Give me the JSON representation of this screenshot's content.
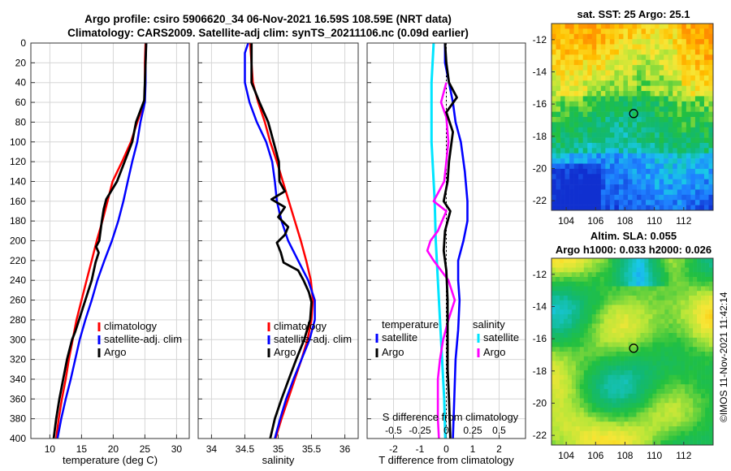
{
  "header": {
    "title_line1": "Argo profile: csiro 5906620_34 06-Nov-2021 16.59S 108.59E (NRT data)",
    "title_line2": "Climatology: CARS2009. Satellite-adj clim: synTS_20211106.nc (0.09d earlier)"
  },
  "right": {
    "sst_title": "sat. SST: 25 Argo: 25.1",
    "sla_title1": "Altim. SLA: 0.055",
    "sla_title2": "Argo h1000: 0.033 h2000: 0.026",
    "copyright": "©IMOS 11-Nov-2021 11:42:14"
  },
  "colors": {
    "climatology": "#ff0000",
    "satellite_adj": "#0000ff",
    "argo": "#000000",
    "sal_satellite": "#00e5ff",
    "sal_argo": "#ff00ff"
  },
  "chart_data": [
    {
      "type": "line",
      "xlabel": "temperature (deg C)",
      "ylabel": "depth",
      "xlim": [
        7,
        32
      ],
      "ylim": [
        400,
        0
      ],
      "xticks": [
        "10",
        "15",
        "20",
        "25",
        "30"
      ],
      "yticks": [
        "0",
        "20",
        "40",
        "60",
        "80",
        "100",
        "120",
        "140",
        "160",
        "180",
        "200",
        "220",
        "240",
        "260",
        "280",
        "300",
        "320",
        "340",
        "360",
        "380",
        "400"
      ],
      "legend": [
        "climatology",
        "satellite-adj. clim",
        "Argo"
      ],
      "series": [
        {
          "name": "climatology",
          "points": [
            [
              25.1,
              0
            ],
            [
              25.0,
              20
            ],
            [
              25.0,
              40
            ],
            [
              24.9,
              60
            ],
            [
              23.8,
              80
            ],
            [
              22.8,
              100
            ],
            [
              21.4,
              120
            ],
            [
              19.9,
              140
            ],
            [
              19.1,
              160
            ],
            [
              18.3,
              180
            ],
            [
              17.4,
              200
            ],
            [
              16.6,
              220
            ],
            [
              15.8,
              240
            ],
            [
              15.0,
              260
            ],
            [
              14.2,
              280
            ],
            [
              13.6,
              300
            ],
            [
              13.0,
              320
            ],
            [
              12.5,
              340
            ],
            [
              11.9,
              360
            ],
            [
              11.4,
              380
            ],
            [
              11.0,
              400
            ]
          ]
        },
        {
          "name": "satellite-adj. clim",
          "points": [
            [
              25.2,
              0
            ],
            [
              25.1,
              20
            ],
            [
              25.1,
              40
            ],
            [
              25.0,
              60
            ],
            [
              24.3,
              80
            ],
            [
              23.8,
              100
            ],
            [
              23.0,
              120
            ],
            [
              22.3,
              140
            ],
            [
              21.6,
              160
            ],
            [
              20.8,
              180
            ],
            [
              19.8,
              200
            ],
            [
              18.6,
              220
            ],
            [
              17.5,
              240
            ],
            [
              16.6,
              260
            ],
            [
              15.6,
              280
            ],
            [
              14.7,
              300
            ],
            [
              14.0,
              320
            ],
            [
              13.3,
              340
            ],
            [
              12.5,
              360
            ],
            [
              11.8,
              380
            ],
            [
              11.2,
              400
            ]
          ]
        },
        {
          "name": "Argo",
          "points": [
            [
              25.2,
              0
            ],
            [
              25.1,
              20
            ],
            [
              25.0,
              40
            ],
            [
              24.9,
              58
            ],
            [
              23.6,
              80
            ],
            [
              23.0,
              100
            ],
            [
              21.8,
              120
            ],
            [
              20.6,
              140
            ],
            [
              18.9,
              158
            ],
            [
              18.5,
              168
            ],
            [
              18.2,
              180
            ],
            [
              17.8,
              200
            ],
            [
              17.3,
              206
            ],
            [
              17.7,
              212
            ],
            [
              17.2,
              222
            ],
            [
              16.6,
              240
            ],
            [
              15.5,
              262
            ],
            [
              14.6,
              280
            ],
            [
              14.0,
              292
            ],
            [
              13.5,
              300
            ],
            [
              12.7,
              320
            ],
            [
              12.1,
              340
            ],
            [
              11.5,
              360
            ],
            [
              11.0,
              380
            ],
            [
              10.6,
              400
            ]
          ]
        }
      ]
    },
    {
      "type": "line",
      "xlabel": "salinity",
      "xlim": [
        33.8,
        36.2
      ],
      "ylim": [
        400,
        0
      ],
      "xticks": [
        "34",
        "34.5",
        "35",
        "35.5",
        "36"
      ],
      "legend": [
        "climatology",
        "satellite-adj. clim",
        "Argo"
      ],
      "series": [
        {
          "name": "climatology",
          "points": [
            [
              34.58,
              0
            ],
            [
              34.62,
              40
            ],
            [
              34.7,
              60
            ],
            [
              34.8,
              80
            ],
            [
              34.88,
              100
            ],
            [
              34.98,
              120
            ],
            [
              35.07,
              140
            ],
            [
              35.16,
              160
            ],
            [
              35.25,
              180
            ],
            [
              35.34,
              200
            ],
            [
              35.42,
              220
            ],
            [
              35.49,
              240
            ],
            [
              35.52,
              260
            ],
            [
              35.5,
              280
            ],
            [
              35.44,
              300
            ],
            [
              35.35,
              320
            ],
            [
              35.25,
              340
            ],
            [
              35.15,
              360
            ],
            [
              35.05,
              380
            ],
            [
              34.96,
              400
            ]
          ]
        },
        {
          "name": "satellite-adj. clim",
          "points": [
            [
              34.55,
              0
            ],
            [
              34.5,
              10
            ],
            [
              34.5,
              40
            ],
            [
              34.57,
              60
            ],
            [
              34.68,
              80
            ],
            [
              34.82,
              100
            ],
            [
              34.91,
              120
            ],
            [
              34.95,
              140
            ],
            [
              34.98,
              160
            ],
            [
              35.05,
              180
            ],
            [
              35.15,
              200
            ],
            [
              35.3,
              220
            ],
            [
              35.45,
              240
            ],
            [
              35.55,
              260
            ],
            [
              35.55,
              280
            ],
            [
              35.47,
              300
            ],
            [
              35.35,
              320
            ],
            [
              35.23,
              340
            ],
            [
              35.12,
              360
            ],
            [
              35.03,
              380
            ],
            [
              34.95,
              400
            ]
          ]
        },
        {
          "name": "Argo",
          "points": [
            [
              34.6,
              0
            ],
            [
              34.6,
              40
            ],
            [
              34.72,
              60
            ],
            [
              34.85,
              80
            ],
            [
              34.93,
              100
            ],
            [
              35.01,
              120
            ],
            [
              35.02,
              140
            ],
            [
              35.1,
              150
            ],
            [
              34.9,
              158
            ],
            [
              35.1,
              166
            ],
            [
              35.0,
              176
            ],
            [
              35.15,
              186
            ],
            [
              35.1,
              194
            ],
            [
              34.98,
              202
            ],
            [
              35.04,
              212
            ],
            [
              35.08,
              222
            ],
            [
              35.3,
              230
            ],
            [
              35.38,
              240
            ],
            [
              35.46,
              252
            ],
            [
              35.5,
              262
            ],
            [
              35.48,
              280
            ],
            [
              35.39,
              300
            ],
            [
              35.27,
              320
            ],
            [
              35.16,
              340
            ],
            [
              35.05,
              360
            ],
            [
              34.95,
              380
            ],
            [
              34.88,
              400
            ]
          ]
        }
      ]
    },
    {
      "type": "line",
      "xlabel": "T difference from climatology",
      "top_axis_label": "S difference from climatology",
      "xlim": [
        -3,
        3
      ],
      "ylim": [
        400,
        0
      ],
      "xticks": [
        "-2",
        "-1",
        "0",
        "1",
        "2"
      ],
      "top_ticks": [
        "-0.5",
        "-0.25",
        "0",
        "0.25",
        "0.5"
      ],
      "legend_temperature_title": "temperature",
      "legend_salinity_title": "salinity",
      "legend_temperature": [
        "satellite",
        "Argo"
      ],
      "legend_salinity": [
        "satellite",
        "Argo"
      ],
      "series": [
        {
          "name": "temperature satellite",
          "points": [
            [
              -0.05,
              0
            ],
            [
              -0.05,
              20
            ],
            [
              0.1,
              40
            ],
            [
              0.25,
              60
            ],
            [
              0.35,
              80
            ],
            [
              0.55,
              100
            ],
            [
              0.7,
              130
            ],
            [
              0.8,
              160
            ],
            [
              0.8,
              180
            ],
            [
              0.65,
              200
            ],
            [
              0.45,
              220
            ],
            [
              0.45,
              240
            ],
            [
              0.5,
              260
            ],
            [
              0.45,
              290
            ],
            [
              0.35,
              320
            ],
            [
              0.3,
              360
            ],
            [
              0.25,
              400
            ]
          ]
        },
        {
          "name": "temperature Argo",
          "points": [
            [
              -0.05,
              0
            ],
            [
              0.0,
              20
            ],
            [
              0.1,
              40
            ],
            [
              0.4,
              55
            ],
            [
              0.0,
              70
            ],
            [
              0.25,
              90
            ],
            [
              0.1,
              120
            ],
            [
              0.05,
              140
            ],
            [
              -0.1,
              160
            ],
            [
              0.15,
              170
            ],
            [
              -0.05,
              190
            ],
            [
              -0.1,
              210
            ],
            [
              0.0,
              230
            ],
            [
              0.05,
              260
            ],
            [
              0.05,
              300
            ],
            [
              0.05,
              330
            ],
            [
              0.1,
              360
            ],
            [
              0.15,
              400
            ]
          ]
        },
        {
          "name": "salinity satellite",
          "points": [
            [
              -0.12,
              0
            ],
            [
              -0.14,
              40
            ],
            [
              -0.14,
              100
            ],
            [
              -0.11,
              160
            ],
            [
              -0.1,
              200
            ],
            [
              -0.08,
              240
            ],
            [
              -0.06,
              280
            ],
            [
              -0.04,
              320
            ],
            [
              -0.02,
              360
            ],
            [
              -0.01,
              400
            ]
          ]
        },
        {
          "name": "salinity Argo",
          "points": [
            [
              0.0,
              40
            ],
            [
              -0.05,
              60
            ],
            [
              0.0,
              75
            ],
            [
              0.02,
              100
            ],
            [
              -0.02,
              140
            ],
            [
              -0.12,
              160
            ],
            [
              0.0,
              170
            ],
            [
              -0.08,
              190
            ],
            [
              -0.15,
              200
            ],
            [
              -0.18,
              210
            ],
            [
              -0.12,
              220
            ],
            [
              0.02,
              240
            ],
            [
              0.08,
              260
            ],
            [
              0.02,
              280
            ],
            [
              -0.03,
              300
            ],
            [
              -0.06,
              320
            ],
            [
              -0.08,
              340
            ],
            [
              -0.08,
              360
            ],
            [
              -0.08,
              380
            ],
            [
              -0.07,
              400
            ]
          ]
        }
      ]
    },
    {
      "type": "heatmap",
      "title": "sat. SST: 25 Argo: 25.1",
      "xticks": [
        "104",
        "106",
        "108",
        "110",
        "112"
      ],
      "yticks": [
        "-12",
        "-14",
        "-16",
        "-18",
        "-20",
        "-22"
      ],
      "xlim": [
        103,
        114
      ],
      "ylim": [
        -22.6,
        -11
      ],
      "argo_position": [
        108.59,
        -16.59
      ]
    },
    {
      "type": "heatmap",
      "title": "Altim. SLA: 0.055 / Argo h1000: 0.033 h2000: 0.026",
      "xticks": [
        "104",
        "106",
        "108",
        "110",
        "112"
      ],
      "yticks": [
        "-12",
        "-14",
        "-16",
        "-18",
        "-20",
        "-22"
      ],
      "xlim": [
        103,
        114
      ],
      "ylim": [
        -22.6,
        -11
      ],
      "argo_position": [
        108.59,
        -16.59
      ]
    }
  ]
}
